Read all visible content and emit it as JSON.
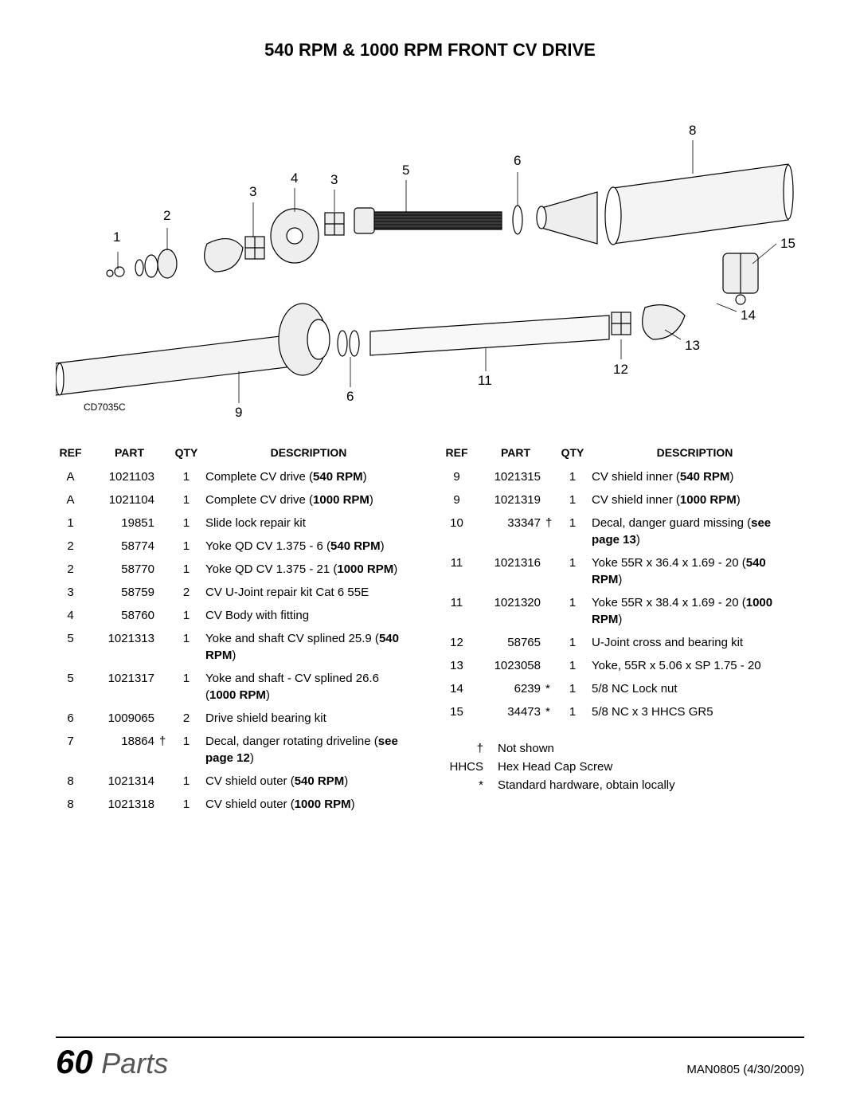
{
  "title": "540 RPM & 1000 RPM FRONT CV DRIVE",
  "diagram": {
    "label": "CD7035C",
    "callouts": [
      "1",
      "2",
      "3",
      "4",
      "3",
      "5",
      "6",
      "8",
      "15",
      "14",
      "13",
      "12",
      "11",
      "6",
      "9"
    ]
  },
  "headers": {
    "ref": "REF",
    "part": "PART",
    "qty": "QTY",
    "desc": "DESCRIPTION"
  },
  "left_rows": [
    {
      "ref": "A",
      "part": "1021103",
      "sym": "",
      "qty": "1",
      "desc": "Complete CV drive (",
      "bold": "540 RPM",
      "after": ")"
    },
    {
      "ref": "A",
      "part": "1021104",
      "sym": "",
      "qty": "1",
      "desc": "Complete CV drive (",
      "bold": "1000 RPM",
      "after": ")"
    },
    {
      "ref": "1",
      "part": "19851",
      "sym": "",
      "qty": "1",
      "desc": "Slide lock repair kit"
    },
    {
      "ref": "2",
      "part": "58774",
      "sym": "",
      "qty": "1",
      "desc": "Yoke QD CV 1.375 - 6 (",
      "bold": "540 RPM",
      "after": ")"
    },
    {
      "ref": "2",
      "part": "58770",
      "sym": "",
      "qty": "1",
      "desc": "Yoke QD CV 1.375 - 21 (",
      "bold": "1000 RPM",
      "after": ")"
    },
    {
      "ref": "3",
      "part": "58759",
      "sym": "",
      "qty": "2",
      "desc": "CV U-Joint repair kit Cat 6 55E"
    },
    {
      "ref": "4",
      "part": "58760",
      "sym": "",
      "qty": "1",
      "desc": "CV Body with fitting"
    },
    {
      "ref": "5",
      "part": "1021313",
      "sym": "",
      "qty": "1",
      "desc": "Yoke and shaft CV splined 25.9 (",
      "bold": "540 RPM",
      "after": ")"
    },
    {
      "ref": "5",
      "part": "1021317",
      "sym": "",
      "qty": "1",
      "desc": "Yoke and shaft - CV splined 26.6 (",
      "bold": "1000 RPM",
      "after": ")"
    },
    {
      "ref": "6",
      "part": "1009065",
      "sym": "",
      "qty": "2",
      "desc": "Drive shield bearing kit"
    },
    {
      "ref": "7",
      "part": "18864",
      "sym": "†",
      "qty": "1",
      "desc": "Decal, danger rotating driveline (",
      "bold": "see page 12",
      "after": ")"
    },
    {
      "ref": "8",
      "part": "1021314",
      "sym": "",
      "qty": "1",
      "desc": "CV shield outer (",
      "bold": "540 RPM",
      "after": ")"
    },
    {
      "ref": "8",
      "part": "1021318",
      "sym": "",
      "qty": "1",
      "desc": "CV shield outer (",
      "bold": "1000 RPM",
      "after": ")"
    }
  ],
  "right_rows": [
    {
      "ref": "9",
      "part": "1021315",
      "sym": "",
      "qty": "1",
      "desc": "CV shield inner (",
      "bold": "540 RPM",
      "after": ")"
    },
    {
      "ref": "9",
      "part": "1021319",
      "sym": "",
      "qty": "1",
      "desc": "CV shield inner (",
      "bold": "1000 RPM",
      "after": ")"
    },
    {
      "ref": "10",
      "part": "33347",
      "sym": "†",
      "qty": "1",
      "desc": "Decal, danger guard missing (",
      "bold": "see page 13",
      "after": ")"
    },
    {
      "ref": "11",
      "part": "1021316",
      "sym": "",
      "qty": "1",
      "desc": "Yoke 55R x 36.4 x 1.69 - 20 (",
      "bold": "540 RPM",
      "after": ")"
    },
    {
      "ref": "11",
      "part": "1021320",
      "sym": "",
      "qty": "1",
      "desc": "Yoke 55R x 38.4 x 1.69 - 20 (",
      "bold": "1000 RPM",
      "after": ")"
    },
    {
      "ref": "12",
      "part": "58765",
      "sym": "",
      "qty": "1",
      "desc": "U-Joint cross and bearing kit"
    },
    {
      "ref": "13",
      "part": "1023058",
      "sym": "",
      "qty": "1",
      "desc": "Yoke, 55R x 5.06 x SP 1.75 - 20"
    },
    {
      "ref": "14",
      "part": "6239",
      "sym": "*",
      "qty": "1",
      "desc": "5/8 NC Lock nut"
    },
    {
      "ref": "15",
      "part": "34473",
      "sym": "*",
      "qty": "1",
      "desc": "5/8 NC x 3 HHCS GR5"
    }
  ],
  "notes": [
    {
      "sym": "†",
      "text": "Not shown"
    },
    {
      "sym": "HHCS",
      "text": "Hex Head Cap Screw"
    },
    {
      "sym": "*",
      "text": "Standard hardware, obtain locally"
    }
  ],
  "footer": {
    "page": "60",
    "section": "Parts",
    "docid": "MAN0805 (4/30/2009)"
  }
}
